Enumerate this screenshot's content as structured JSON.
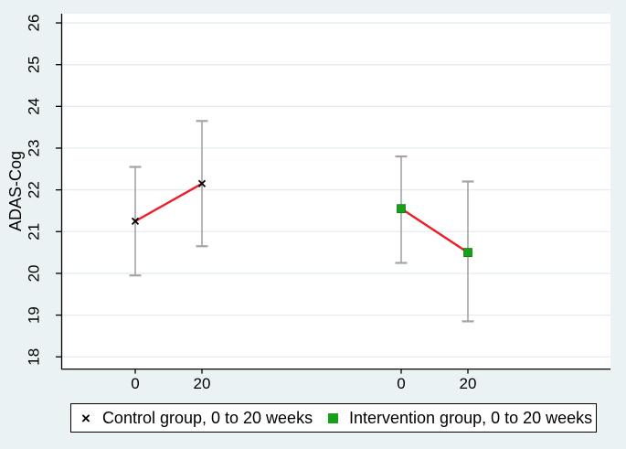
{
  "chart_data": {
    "type": "errorbar-line",
    "title": "",
    "ylabel": "ADAS-Cog",
    "xlabel": "",
    "yticks": [
      18,
      19,
      20,
      21,
      22,
      23,
      24,
      25,
      26
    ],
    "ylim": [
      17.72,
      26.22
    ],
    "grid": true,
    "x_tick_labels": [
      "0",
      "20",
      "0",
      "20"
    ],
    "series": [
      {
        "name": "Control group, 0 to 20 weeks",
        "marker": "x",
        "points": [
          {
            "x_label": "0",
            "y": 21.25,
            "lo": 19.95,
            "hi": 22.55
          },
          {
            "x_label": "20",
            "y": 22.15,
            "lo": 20.65,
            "hi": 23.65
          }
        ]
      },
      {
        "name": "Intervention group, 0 to 20 weeks",
        "marker": "square",
        "points": [
          {
            "x_label": "0",
            "y": 21.55,
            "lo": 20.25,
            "hi": 22.8
          },
          {
            "x_label": "20",
            "y": 20.5,
            "lo": 18.85,
            "hi": 22.2
          }
        ]
      }
    ],
    "legend": {
      "position": "bottom",
      "items": [
        {
          "marker_glyph": "×",
          "label": "Control group, 0 to 20 weeks"
        },
        {
          "marker_glyph": "■",
          "label": "Intervention group, 0 to 20 weeks"
        }
      ]
    },
    "colors": {
      "background": "#eaf2f3",
      "plot_background": "#ffffff",
      "grid": "#e2edf0",
      "axis": "#000000",
      "error_bar": "#a4a4a4",
      "trend_line": "#ee1c28",
      "marker_x": "#000000",
      "marker_square": "#19a019",
      "marker_square_edge": "#0d7d0d",
      "text": "#000000"
    }
  }
}
